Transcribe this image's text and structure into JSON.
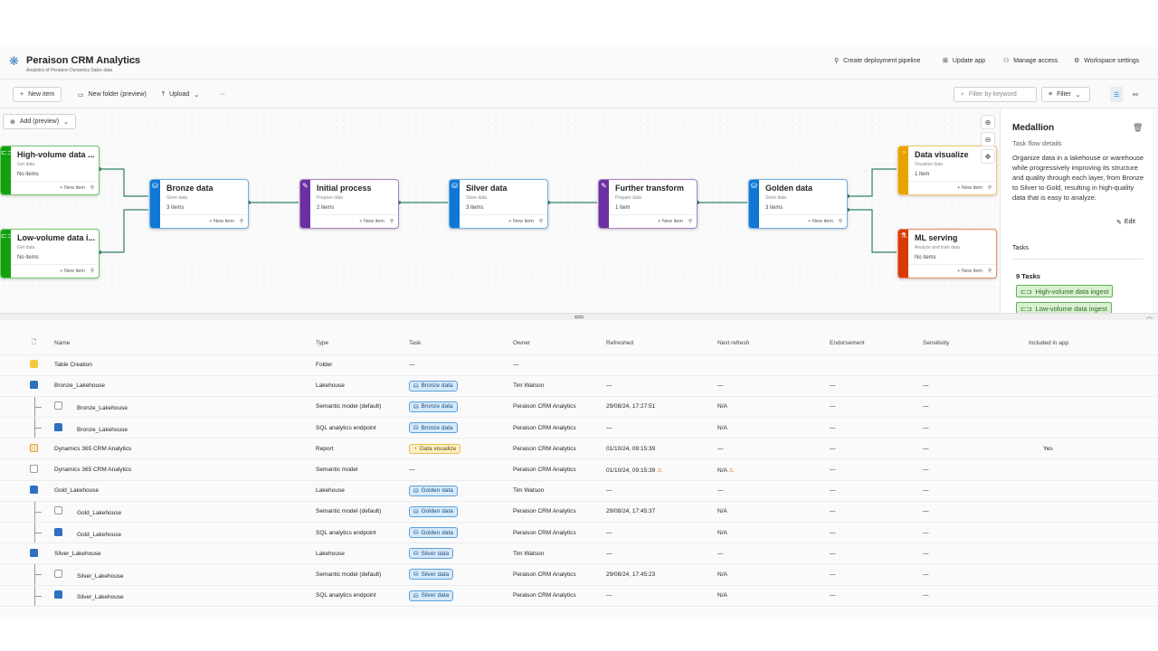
{
  "header": {
    "title": "Peraison CRM Analytics",
    "subtitle": "Analytics of Peraison Dynamics Sales data",
    "actions": [
      {
        "label": "Create deployment pipeline",
        "icon": "rocket-icon"
      },
      {
        "label": "Update app",
        "icon": "app-icon"
      },
      {
        "label": "Manage access",
        "icon": "people-icon"
      },
      {
        "label": "Workspace settings",
        "icon": "gear-icon"
      }
    ]
  },
  "toolbar": {
    "new_item": "New item",
    "new_folder": "New folder (preview)",
    "upload": "Upload",
    "more": "···",
    "filter_placeholder": "Filter by keyword",
    "filter": "Filter"
  },
  "canvas": {
    "add": "Add (preview)",
    "new_item": "New item",
    "nodes": [
      {
        "title": "High-volume data ...",
        "sub": "Get data",
        "count": "No items",
        "color": "#13a10e",
        "icon": "⊏⊐"
      },
      {
        "title": "Low-volume data i...",
        "sub": "Get data",
        "count": "No items",
        "color": "#13a10e",
        "icon": "⊏⊐"
      },
      {
        "title": "Bronze data",
        "sub": "Store data",
        "count": "3 items",
        "color": "#0f78d4",
        "icon": "⛁"
      },
      {
        "title": "Initial process",
        "sub": "Prepare data",
        "count": "2 items",
        "color": "#6b2fa0",
        "icon": "✎"
      },
      {
        "title": "Silver data",
        "sub": "Store data",
        "count": "3 items",
        "color": "#0f78d4",
        "icon": "⛁"
      },
      {
        "title": "Further transform",
        "sub": "Prepare data",
        "count": "1 item",
        "color": "#6b2fa0",
        "icon": "✎"
      },
      {
        "title": "Golden data",
        "sub": "Store data",
        "count": "3 items",
        "color": "#0f78d4",
        "icon": "⛁"
      },
      {
        "title": "Data visualize",
        "sub": "Visualize data",
        "count": "1 item",
        "color": "#e8a200",
        "icon": "◔"
      },
      {
        "title": "ML serving",
        "sub": "Analyze and train data",
        "count": "No items",
        "color": "#d83b01",
        "icon": "⚗"
      }
    ]
  },
  "panel": {
    "title": "Medallion",
    "subtitle": "Task flow details",
    "description": "Organize data in a lakehouse or warehouse while progressively improving its structure and quality through each layer, from Bronze to Silver to Gold, resulting in high-quality data that is easy to analyze.",
    "edit": "Edit",
    "tasks_label": "Tasks",
    "tasks_count": "9 Tasks",
    "tasks": [
      "High-volume data ingest",
      "Low-volume data ingest"
    ]
  },
  "table": {
    "columns": [
      "Name",
      "Type",
      "Task",
      "Owner",
      "Refreshed",
      "Next refresh",
      "Endorsement",
      "Sensitivity",
      "Included in app"
    ],
    "rows": [
      {
        "name": "Table Creation",
        "type": "Folder",
        "task": "—",
        "owner": "—",
        "refreshed": "",
        "next": "",
        "endorsement": "",
        "sensitivity": "",
        "included": "",
        "icon": "folder",
        "child": false
      },
      {
        "name": "Bronze_Lakehouse",
        "type": "Lakehouse",
        "task": "Bronze data",
        "owner": "Tim Watson",
        "refreshed": "—",
        "next": "—",
        "endorsement": "—",
        "sensitivity": "—",
        "included": "",
        "icon": "lakehouse",
        "child": false
      },
      {
        "name": "Bronze_Lakehouse",
        "type": "Semantic model (default)",
        "task": "Bronze data",
        "owner": "Peraison CRM Analytics",
        "refreshed": "29/08/24, 17:27:51",
        "next": "N/A",
        "endorsement": "—",
        "sensitivity": "—",
        "included": "",
        "icon": "model",
        "child": true
      },
      {
        "name": "Bronze_Lakehouse",
        "type": "SQL analytics endpoint",
        "task": "Bronze data",
        "owner": "Peraison CRM Analytics",
        "refreshed": "—",
        "next": "N/A",
        "endorsement": "—",
        "sensitivity": "—",
        "included": "",
        "icon": "lakehouse",
        "child": true
      },
      {
        "name": "Dynamics 365 CRM Analytics",
        "type": "Report",
        "task": "Data visualize",
        "owner": "Peraison CRM Analytics",
        "refreshed": "01/10/24, 09:15:39",
        "next": "—",
        "endorsement": "—",
        "sensitivity": "—",
        "included": "Yes",
        "icon": "report",
        "child": false
      },
      {
        "name": "Dynamics 365 CRM Analytics",
        "type": "Semantic model",
        "task": "—",
        "owner": "Peraison CRM Analytics",
        "refreshed": "01/10/24, 09:15:39",
        "next": "N/A",
        "endorsement": "—",
        "sensitivity": "—",
        "included": "",
        "icon": "model",
        "child": false,
        "warn": true
      },
      {
        "name": "Gold_Lakehouse",
        "type": "Lakehouse",
        "task": "Golden data",
        "owner": "Tim Watson",
        "refreshed": "—",
        "next": "—",
        "endorsement": "—",
        "sensitivity": "—",
        "included": "",
        "icon": "lakehouse",
        "child": false
      },
      {
        "name": "Gold_Lakehouse",
        "type": "Semantic model (default)",
        "task": "Golden data",
        "owner": "Peraison CRM Analytics",
        "refreshed": "29/08/24, 17:45:37",
        "next": "N/A",
        "endorsement": "—",
        "sensitivity": "—",
        "included": "",
        "icon": "model",
        "child": true
      },
      {
        "name": "Gold_Lakehouse",
        "type": "SQL analytics endpoint",
        "task": "Golden data",
        "owner": "Peraison CRM Analytics",
        "refreshed": "—",
        "next": "N/A",
        "endorsement": "—",
        "sensitivity": "—",
        "included": "",
        "icon": "lakehouse",
        "child": true
      },
      {
        "name": "Silver_Lakehouse",
        "type": "Lakehouse",
        "task": "Silver data",
        "owner": "Tim Watson",
        "refreshed": "—",
        "next": "—",
        "endorsement": "—",
        "sensitivity": "—",
        "included": "",
        "icon": "lakehouse",
        "child": false
      },
      {
        "name": "Silver_Lakehouse",
        "type": "Semantic model (default)",
        "task": "Silver data",
        "owner": "Peraison CRM Analytics",
        "refreshed": "29/08/24, 17:45:23",
        "next": "N/A",
        "endorsement": "—",
        "sensitivity": "—",
        "included": "",
        "icon": "model",
        "child": true
      },
      {
        "name": "Silver_Lakehouse",
        "type": "SQL analytics endpoint",
        "task": "Silver data",
        "owner": "Peraison CRM Analytics",
        "refreshed": "—",
        "next": "N/A",
        "endorsement": "—",
        "sensitivity": "—",
        "included": "",
        "icon": "lakehouse",
        "child": true
      }
    ]
  }
}
